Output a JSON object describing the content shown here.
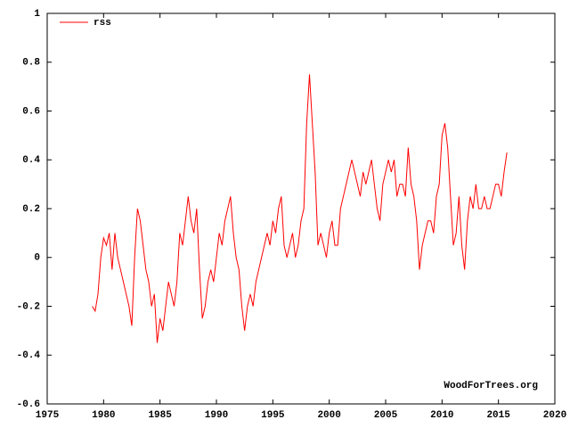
{
  "chart_data": {
    "type": "line",
    "x": [
      1979.0,
      1979.25,
      1979.5,
      1979.75,
      1980.0,
      1980.25,
      1980.5,
      1980.75,
      1981.0,
      1981.25,
      1981.5,
      1981.75,
      1982.0,
      1982.25,
      1982.5,
      1982.75,
      1983.0,
      1983.25,
      1983.5,
      1983.75,
      1984.0,
      1984.25,
      1984.5,
      1984.75,
      1985.0,
      1985.25,
      1985.5,
      1985.75,
      1986.0,
      1986.25,
      1986.5,
      1986.75,
      1987.0,
      1987.25,
      1987.5,
      1987.75,
      1988.0,
      1988.25,
      1988.5,
      1988.75,
      1989.0,
      1989.25,
      1989.5,
      1989.75,
      1990.0,
      1990.25,
      1990.5,
      1990.75,
      1991.0,
      1991.25,
      1991.5,
      1991.75,
      1992.0,
      1992.25,
      1992.5,
      1992.75,
      1993.0,
      1993.25,
      1993.5,
      1993.75,
      1994.0,
      1994.25,
      1994.5,
      1994.75,
      1995.0,
      1995.25,
      1995.5,
      1995.75,
      1996.0,
      1996.25,
      1996.5,
      1996.75,
      1997.0,
      1997.25,
      1997.5,
      1997.75,
      1998.0,
      1998.25,
      1998.5,
      1998.75,
      1999.0,
      1999.25,
      1999.5,
      1999.75,
      2000.0,
      2000.25,
      2000.5,
      2000.75,
      2001.0,
      2001.25,
      2001.5,
      2001.75,
      2002.0,
      2002.25,
      2002.5,
      2002.75,
      2003.0,
      2003.25,
      2003.5,
      2003.75,
      2004.0,
      2004.25,
      2004.5,
      2004.75,
      2005.0,
      2005.25,
      2005.5,
      2005.75,
      2006.0,
      2006.25,
      2006.5,
      2006.75,
      2007.0,
      2007.25,
      2007.5,
      2007.75,
      2008.0,
      2008.25,
      2008.5,
      2008.75,
      2009.0,
      2009.25,
      2009.5,
      2009.75,
      2010.0,
      2010.25,
      2010.5,
      2010.75,
      2011.0,
      2011.25,
      2011.5,
      2011.75,
      2012.0,
      2012.25,
      2012.5,
      2012.75,
      2013.0,
      2013.25,
      2013.5,
      2013.75,
      2014.0,
      2014.25,
      2014.5,
      2014.75,
      2015.0,
      2015.25,
      2015.5,
      2015.75
    ],
    "series": [
      {
        "name": "rss",
        "color": "#ff0000",
        "values": [
          -0.2,
          -0.22,
          -0.15,
          0.0,
          0.08,
          0.05,
          0.1,
          -0.05,
          0.1,
          0.0,
          -0.05,
          -0.1,
          -0.15,
          -0.2,
          -0.28,
          0.0,
          0.2,
          0.15,
          0.05,
          -0.05,
          -0.1,
          -0.2,
          -0.15,
          -0.35,
          -0.25,
          -0.3,
          -0.2,
          -0.1,
          -0.15,
          -0.2,
          -0.1,
          0.1,
          0.05,
          0.15,
          0.25,
          0.15,
          0.1,
          0.2,
          -0.05,
          -0.25,
          -0.2,
          -0.1,
          -0.05,
          -0.1,
          0.0,
          0.1,
          0.05,
          0.15,
          0.2,
          0.25,
          0.1,
          0.0,
          -0.05,
          -0.2,
          -0.3,
          -0.2,
          -0.15,
          -0.2,
          -0.1,
          -0.05,
          0.0,
          0.05,
          0.1,
          0.05,
          0.15,
          0.1,
          0.2,
          0.25,
          0.05,
          0.0,
          0.05,
          0.1,
          0.0,
          0.05,
          0.15,
          0.2,
          0.55,
          0.75,
          0.55,
          0.35,
          0.05,
          0.1,
          0.05,
          0.0,
          0.1,
          0.15,
          0.05,
          0.05,
          0.2,
          0.25,
          0.3,
          0.35,
          0.4,
          0.35,
          0.3,
          0.25,
          0.35,
          0.3,
          0.35,
          0.4,
          0.3,
          0.2,
          0.15,
          0.3,
          0.35,
          0.4,
          0.35,
          0.4,
          0.25,
          0.3,
          0.3,
          0.25,
          0.45,
          0.3,
          0.25,
          0.15,
          -0.05,
          0.05,
          0.1,
          0.15,
          0.15,
          0.1,
          0.25,
          0.3,
          0.5,
          0.55,
          0.45,
          0.25,
          0.05,
          0.1,
          0.25,
          0.05,
          -0.05,
          0.15,
          0.25,
          0.2,
          0.3,
          0.2,
          0.2,
          0.25,
          0.2,
          0.2,
          0.25,
          0.3,
          0.3,
          0.25,
          0.35,
          0.43
        ]
      }
    ],
    "xlim": [
      1975,
      2020
    ],
    "xticks": [
      1975,
      1980,
      1985,
      1990,
      1995,
      2000,
      2005,
      2010,
      2015,
      2020
    ],
    "ylim": [
      -0.6,
      1
    ],
    "yticks": [
      -0.6,
      -0.4,
      -0.2,
      0,
      0.2,
      0.4,
      0.6,
      0.8,
      1
    ],
    "annotation": "WoodForTrees.org",
    "legend": "upper left",
    "grid": false
  }
}
